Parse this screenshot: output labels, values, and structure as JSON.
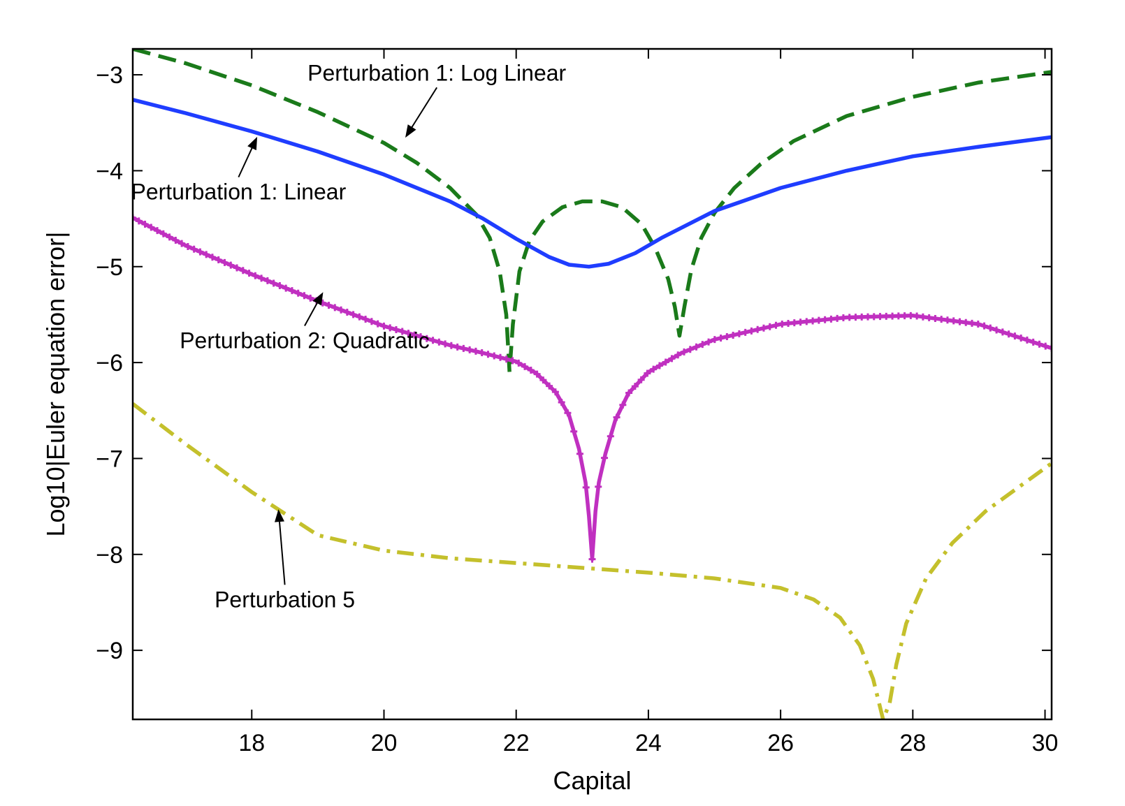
{
  "chart_data": {
    "type": "line",
    "title": "",
    "xlabel": "Capital",
    "ylabel": "Log10|Euler equation error|",
    "xlim": [
      16.2,
      30.1
    ],
    "ylim": [
      -9.72,
      -2.73
    ],
    "x_ticks": [
      18,
      20,
      22,
      24,
      26,
      28,
      30
    ],
    "y_ticks": [
      -3,
      -4,
      -5,
      -6,
      -7,
      -8,
      -9
    ],
    "x_tick_labels": [
      "18",
      "20",
      "22",
      "24",
      "26",
      "28",
      "30"
    ],
    "y_tick_labels": [
      "−3",
      "−4",
      "−5",
      "−6",
      "−7",
      "−8",
      "−9"
    ],
    "grid": false,
    "series": [
      {
        "name": "Perturbation 1: Log Linear",
        "color": "#1a7a1a",
        "style": "dashed",
        "x": [
          16.2,
          17,
          18,
          19,
          20,
          20.5,
          21,
          21.4,
          21.6,
          21.75,
          21.85,
          21.9,
          21.95,
          22.05,
          22.2,
          22.4,
          22.7,
          23.0,
          23.3,
          23.6,
          23.9,
          24.1,
          24.3,
          24.4,
          24.47,
          24.55,
          24.65,
          24.8,
          25.0,
          25.3,
          25.7,
          26.2,
          27,
          28,
          29,
          30.1
        ],
        "y": [
          -2.73,
          -2.88,
          -3.11,
          -3.39,
          -3.71,
          -3.92,
          -4.18,
          -4.46,
          -4.7,
          -5.05,
          -5.5,
          -6.1,
          -5.6,
          -5.05,
          -4.73,
          -4.53,
          -4.38,
          -4.32,
          -4.32,
          -4.38,
          -4.56,
          -4.8,
          -5.13,
          -5.42,
          -5.72,
          -5.4,
          -5.03,
          -4.7,
          -4.44,
          -4.18,
          -3.93,
          -3.69,
          -3.43,
          -3.23,
          -3.08,
          -2.97
        ]
      },
      {
        "name": "Perturbation 1: Linear",
        "color": "#1f3dff",
        "style": "solid",
        "x": [
          16.2,
          17,
          18,
          19,
          20,
          21,
          21.5,
          22,
          22.5,
          22.8,
          23.1,
          23.4,
          23.8,
          24.2,
          24.6,
          25,
          26,
          27,
          28,
          29,
          30.1
        ],
        "y": [
          -3.26,
          -3.4,
          -3.59,
          -3.8,
          -4.04,
          -4.32,
          -4.5,
          -4.71,
          -4.9,
          -4.98,
          -5.0,
          -4.97,
          -4.86,
          -4.7,
          -4.56,
          -4.42,
          -4.18,
          -4.0,
          -3.85,
          -3.75,
          -3.65
        ]
      },
      {
        "name": "Perturbation 2: Quadratic",
        "color": "#c030c0",
        "style": "solid-markers",
        "x": [
          16.2,
          17,
          18,
          19,
          20,
          21,
          21.5,
          22,
          22.3,
          22.6,
          22.8,
          22.95,
          23.05,
          23.1,
          23.15,
          23.2,
          23.25,
          23.35,
          23.5,
          23.7,
          24.0,
          24.5,
          25,
          26,
          27,
          28,
          29,
          30.1
        ],
        "y": [
          -4.49,
          -4.78,
          -5.08,
          -5.36,
          -5.62,
          -5.82,
          -5.9,
          -5.99,
          -6.11,
          -6.31,
          -6.55,
          -6.9,
          -7.25,
          -7.6,
          -8.05,
          -7.55,
          -7.25,
          -6.95,
          -6.6,
          -6.32,
          -6.1,
          -5.9,
          -5.76,
          -5.6,
          -5.53,
          -5.51,
          -5.6,
          -5.85
        ]
      },
      {
        "name": "Perturbation 5",
        "color": "#c4c02c",
        "style": "dashdot",
        "x": [
          16.2,
          17,
          18,
          19,
          20,
          21,
          22,
          23,
          24,
          25,
          26,
          26.5,
          26.9,
          27.2,
          27.4,
          27.55,
          27.65,
          27.75,
          27.9,
          28.2,
          28.6,
          29.1,
          29.6,
          30.1
        ],
        "y": [
          -6.43,
          -6.85,
          -7.35,
          -7.8,
          -7.96,
          -8.04,
          -8.09,
          -8.14,
          -8.19,
          -8.25,
          -8.35,
          -8.47,
          -8.66,
          -8.95,
          -9.3,
          -9.72,
          -9.55,
          -9.15,
          -8.72,
          -8.25,
          -7.88,
          -7.55,
          -7.3,
          -7.05
        ]
      }
    ],
    "annotations": [
      {
        "text": "Perturbation 1: Log Linear",
        "series": 0,
        "point": [
          20.3,
          -3.68
        ],
        "label_pos": [
          20.8,
          -3.06
        ]
      },
      {
        "text": "Perturbation 1: Linear",
        "series": 1,
        "point": [
          18.1,
          -3.62
        ],
        "label_pos": [
          17.8,
          -4.3
        ]
      },
      {
        "text": "Perturbation 2: Quadratic",
        "series": 2,
        "point": [
          19.1,
          -5.24
        ],
        "label_pos": [
          18.8,
          -5.85
        ]
      },
      {
        "text": "Perturbation 5",
        "series": 3,
        "point": [
          18.4,
          -7.5
        ],
        "label_pos": [
          18.5,
          -8.55
        ]
      }
    ]
  }
}
